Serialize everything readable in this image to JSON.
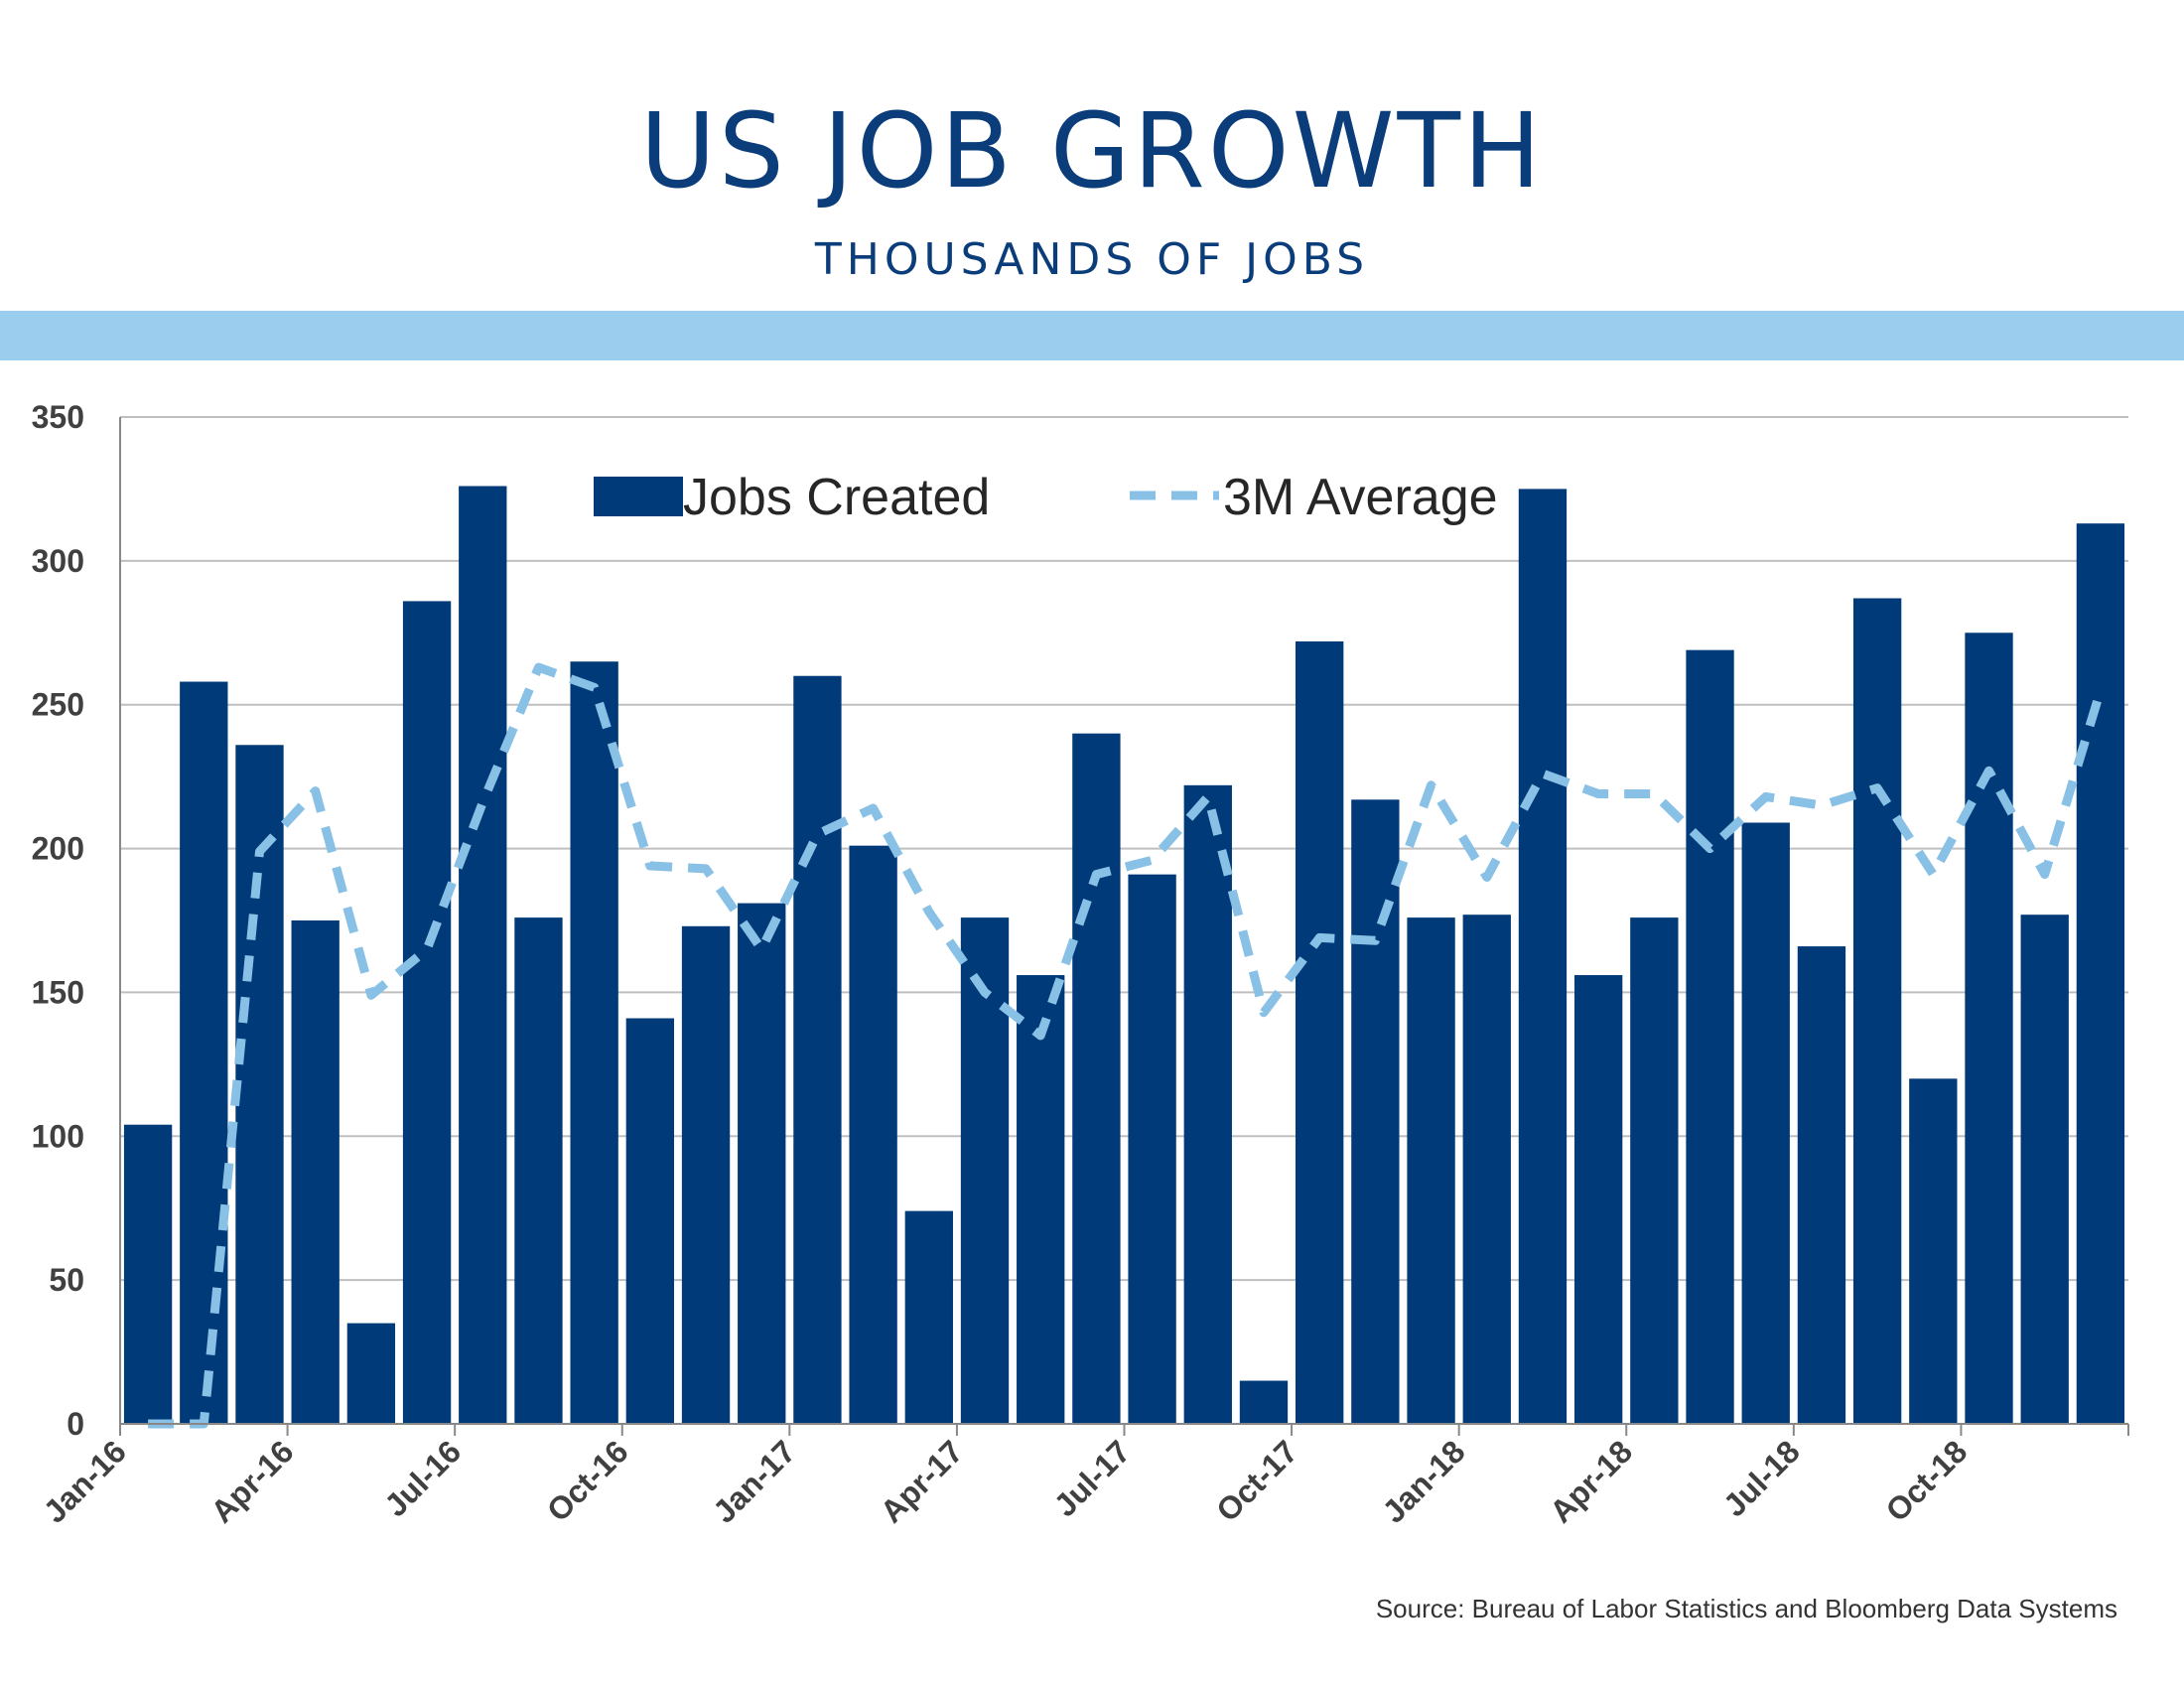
{
  "header": {
    "title": "US JOB GROWTH",
    "subtitle": "THOUSANDS OF JOBS"
  },
  "footer": {
    "source": "Source:  Bureau of Labor Statistics and Bloomberg Data Systems"
  },
  "colors": {
    "title": "#0a3d7a",
    "band": "#9bcdee",
    "bars": "#003a78",
    "average_line": "#88c0e6",
    "gridline": "#bfbfbf",
    "axis": "#888888"
  },
  "chart_data": {
    "type": "bar",
    "title": "US JOB GROWTH",
    "subtitle": "THOUSANDS OF JOBS",
    "categories": [
      "Jan-16",
      "Feb-16",
      "Mar-16",
      "Apr-16",
      "May-16",
      "Jun-16",
      "Jul-16",
      "Aug-16",
      "Sep-16",
      "Oct-16",
      "Nov-16",
      "Dec-16",
      "Jan-17",
      "Feb-17",
      "Mar-17",
      "Apr-17",
      "May-17",
      "Jun-17",
      "Jul-17",
      "Aug-17",
      "Sep-17",
      "Oct-17",
      "Nov-17",
      "Dec-17",
      "Jan-18",
      "Feb-18",
      "Mar-18",
      "Apr-18",
      "May-18",
      "Jun-18",
      "Jul-18",
      "Aug-18",
      "Sep-18",
      "Oct-18",
      "Nov-18",
      "Dec-18"
    ],
    "x_tick_labels": [
      "Jan-16",
      "Apr-16",
      "Jul-16",
      "Oct-16",
      "Jan-17",
      "Apr-17",
      "Jul-17",
      "Oct-17",
      "Jan-18",
      "Apr-18",
      "Jul-18",
      "Oct-18"
    ],
    "series": [
      {
        "name": "Jobs Created",
        "type": "bar",
        "values": [
          104,
          258,
          236,
          175,
          35,
          286,
          326,
          176,
          265,
          141,
          173,
          181,
          260,
          201,
          74,
          176,
          156,
          240,
          191,
          222,
          15,
          272,
          217,
          176,
          177,
          325,
          156,
          176,
          269,
          209,
          166,
          287,
          120,
          275,
          177,
          313
        ]
      },
      {
        "name": "3M Average",
        "type": "line",
        "style": "dashed",
        "values": [
          0,
          0,
          199,
          220,
          149,
          165,
          216,
          263,
          256,
          194,
          193,
          165,
          205,
          214,
          178,
          150,
          135,
          191,
          196,
          218,
          143,
          169,
          168,
          222,
          190,
          226,
          219,
          219,
          200,
          218,
          215,
          221,
          191,
          227,
          191,
          255
        ]
      }
    ],
    "ylim": [
      0,
      350
    ],
    "y_ticks": [
      0,
      50,
      100,
      150,
      200,
      250,
      300,
      350
    ],
    "grid": true,
    "legend": "top-center"
  }
}
